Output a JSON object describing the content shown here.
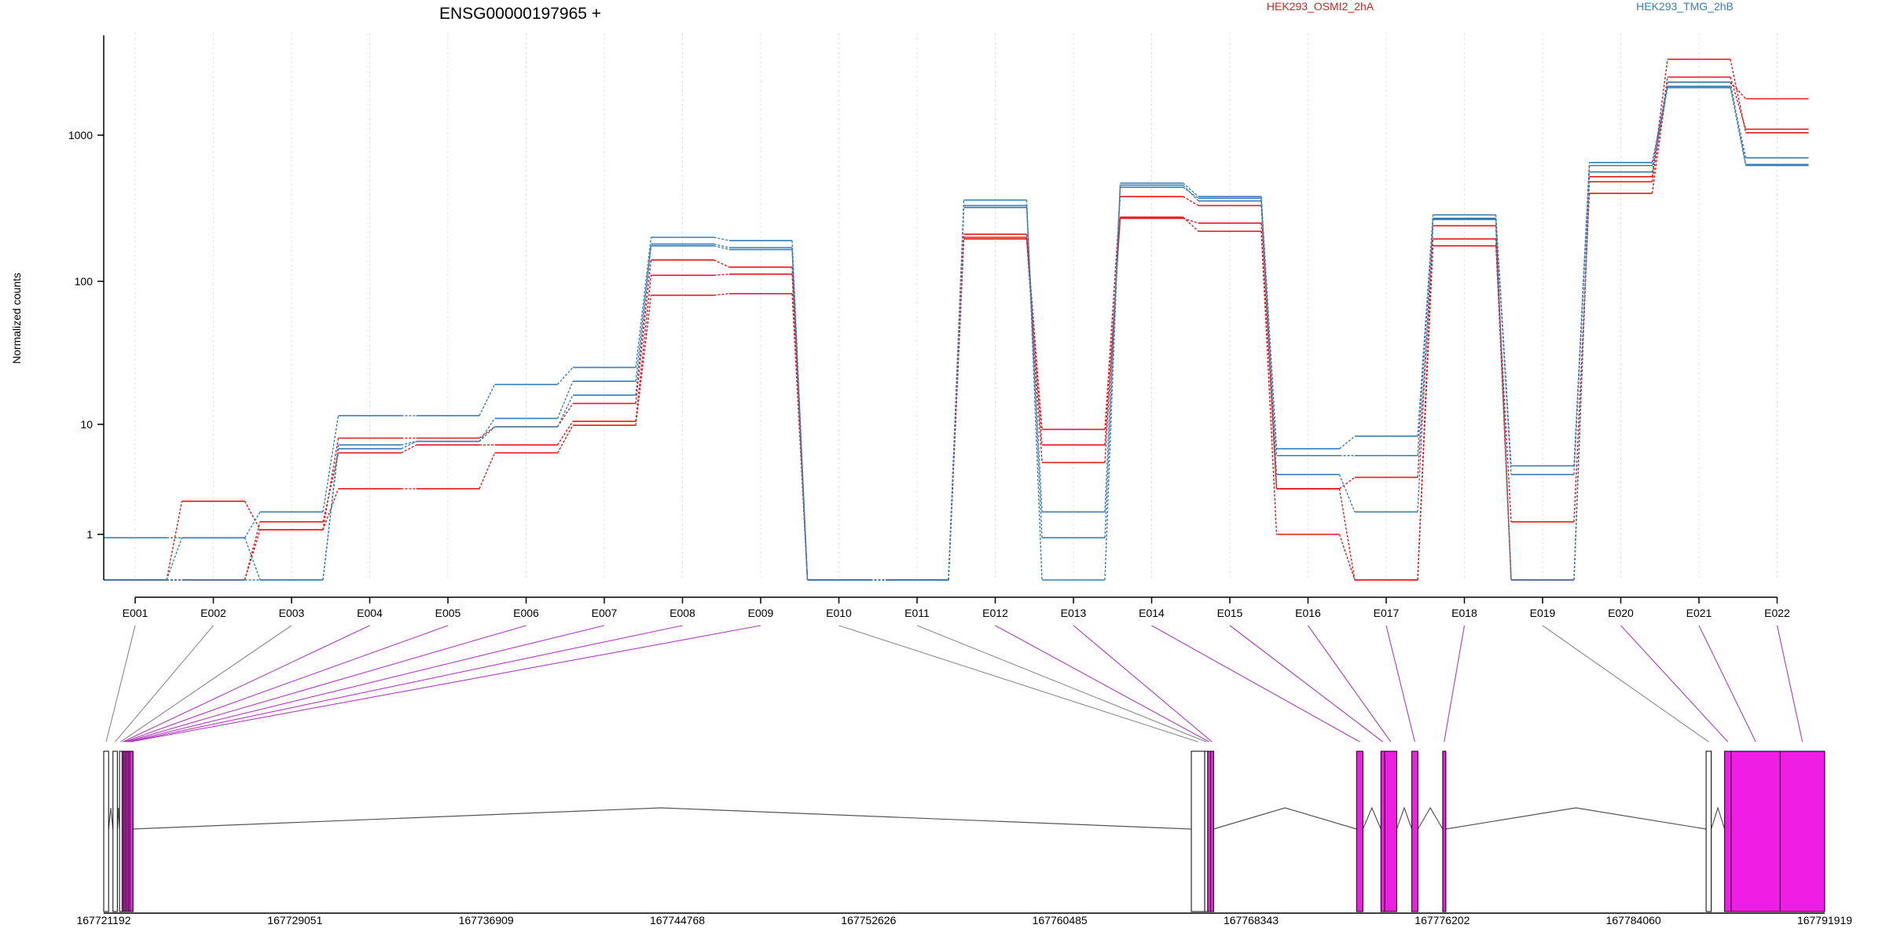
{
  "chart_data": [
    {
      "type": "line",
      "title": "ENSG00000197965 +",
      "ylabel": "Normalized counts",
      "yscale": "log",
      "ylim": [
        0.5,
        5000
      ],
      "yticks": [
        1,
        10,
        100,
        1000
      ],
      "ytick_labels": [
        "1",
        "10",
        "100",
        "1000"
      ],
      "grid": "vertical dotted at each exon",
      "legend": [
        {
          "name": "HEK293_OSMI2_2hA",
          "color": "#e41a1c"
        },
        {
          "name": "HEK293_TMG_2hB",
          "color": "#377eb8"
        }
      ],
      "categories": [
        "E001",
        "E002",
        "E003",
        "E004",
        "E005",
        "E006",
        "E007",
        "E008",
        "E009",
        "E010",
        "E011",
        "E012",
        "E013",
        "E014",
        "E015",
        "E016",
        "E017",
        "E018",
        "E019",
        "E020",
        "E021",
        "E022"
      ],
      "series": [
        {
          "group": "HEK293_OSMI2_2hA",
          "color": "#e41a1c",
          "values": [
            0.5,
            2.0,
            1.1,
            2.6,
            2.6,
            5.5,
            9.8,
            80,
            82,
            0.5,
            0.5,
            195,
            4.5,
            275,
            220,
            1.0,
            0.5,
            175,
            1.3,
            400,
            2350,
            1800
          ]
        },
        {
          "group": "HEK293_OSMI2_2hA",
          "color": "#e41a1c",
          "values": [
            0.5,
            0.5,
            1.3,
            5.5,
            6.5,
            6.5,
            10.5,
            110,
            112,
            0.5,
            0.5,
            200,
            6.5,
            270,
            250,
            2.6,
            3.3,
            195,
            0.5,
            480,
            2550,
            1100
          ]
        },
        {
          "group": "HEK293_OSMI2_2hA",
          "color": "#e41a1c",
          "values": [
            0.5,
            0.5,
            1.1,
            7.5,
            7.5,
            9.5,
            14,
            140,
            125,
            0.5,
            0.5,
            210,
            9.0,
            380,
            330,
            2.6,
            0.5,
            240,
            0.5,
            520,
            3400,
            1040
          ]
        },
        {
          "group": "HEK293_TMG_2hB",
          "color": "#377eb8",
          "values": [
            0.95,
            0.95,
            1.6,
            11.5,
            11.5,
            19,
            25,
            200,
            190,
            0.5,
            0.5,
            360,
            0.5,
            470,
            380,
            6.0,
            7.8,
            285,
            4.2,
            650,
            2200,
            700
          ]
        },
        {
          "group": "HEK293_TMG_2hB",
          "color": "#377eb8",
          "values": [
            0.5,
            0.95,
            0.5,
            6.5,
            7.0,
            11,
            20,
            180,
            170,
            0.5,
            0.5,
            330,
            0.95,
            455,
            355,
            5.2,
            5.2,
            270,
            3.5,
            620,
            2350,
            630
          ]
        },
        {
          "group": "HEK293_TMG_2hB",
          "color": "#377eb8",
          "values": [
            0.5,
            0.5,
            0.5,
            6.0,
            7.0,
            9.5,
            16,
            175,
            165,
            0.5,
            0.5,
            320,
            1.6,
            440,
            370,
            3.5,
            1.6,
            265,
            0.5,
            560,
            2150,
            620
          ]
        }
      ]
    },
    {
      "type": "gene-model",
      "xlim": [
        167721192,
        167791919
      ],
      "xticks": [
        167721192,
        167729051,
        167736909,
        167744768,
        167752626,
        167760485,
        167768343,
        167776202,
        167784060,
        167791919
      ],
      "xtick_labels": [
        "167721192",
        "167729051",
        "167736909",
        "167744768",
        "167752626",
        "167760485",
        "167768343",
        "167776202",
        "167784060",
        "167791919"
      ],
      "colors": {
        "tested_exon": "#f01ee5",
        "untested_exon": "#ffffff",
        "outline": "#000000",
        "guide_tested": "#b03bc0",
        "guide_untested": "#8a8a8a"
      },
      "exons": [
        {
          "id": "E001",
          "start": 167721192,
          "end": 167721392,
          "tested": false
        },
        {
          "id": "E002",
          "start": 167721572,
          "end": 167721752,
          "tested": false
        },
        {
          "id": "E003",
          "start": 167721842,
          "end": 167721927,
          "tested": false
        },
        {
          "id": "E004",
          "start": 167721947,
          "end": 167722012,
          "tested": true
        },
        {
          "id": "E005",
          "start": 167722012,
          "end": 167722077,
          "tested": true
        },
        {
          "id": "E006",
          "start": 167722077,
          "end": 167722142,
          "tested": true
        },
        {
          "id": "E007",
          "start": 167722142,
          "end": 167722207,
          "tested": true
        },
        {
          "id": "E008",
          "start": 167722207,
          "end": 167722267,
          "tested": true
        },
        {
          "id": "E009",
          "start": 167722267,
          "end": 167722327,
          "tested": true
        },
        {
          "id": "E010",
          "start": 167765890,
          "end": 167766440,
          "tested": false
        },
        {
          "id": "E011",
          "start": 167766440,
          "end": 167766560,
          "tested": false
        },
        {
          "id": "E012",
          "start": 167766560,
          "end": 167766680,
          "tested": true
        },
        {
          "id": "E013",
          "start": 167766680,
          "end": 167766800,
          "tested": true
        },
        {
          "id": "E014",
          "start": 167772680,
          "end": 167772940,
          "tested": true
        },
        {
          "id": "E015",
          "start": 167773680,
          "end": 167773840,
          "tested": true
        },
        {
          "id": "E016",
          "start": 167773840,
          "end": 167774330,
          "tested": true
        },
        {
          "id": "E017",
          "start": 167774950,
          "end": 167775200,
          "tested": true
        },
        {
          "id": "E018",
          "start": 167776220,
          "end": 167776340,
          "tested": true
        },
        {
          "id": "E019",
          "start": 167787045,
          "end": 167787255,
          "tested": false
        },
        {
          "id": "E020",
          "start": 167787805,
          "end": 167788075,
          "tested": true
        },
        {
          "id": "E021",
          "start": 167788075,
          "end": 167790090,
          "tested": true
        },
        {
          "id": "E022",
          "start": 167790090,
          "end": 167791919,
          "tested": true
        }
      ]
    }
  ]
}
